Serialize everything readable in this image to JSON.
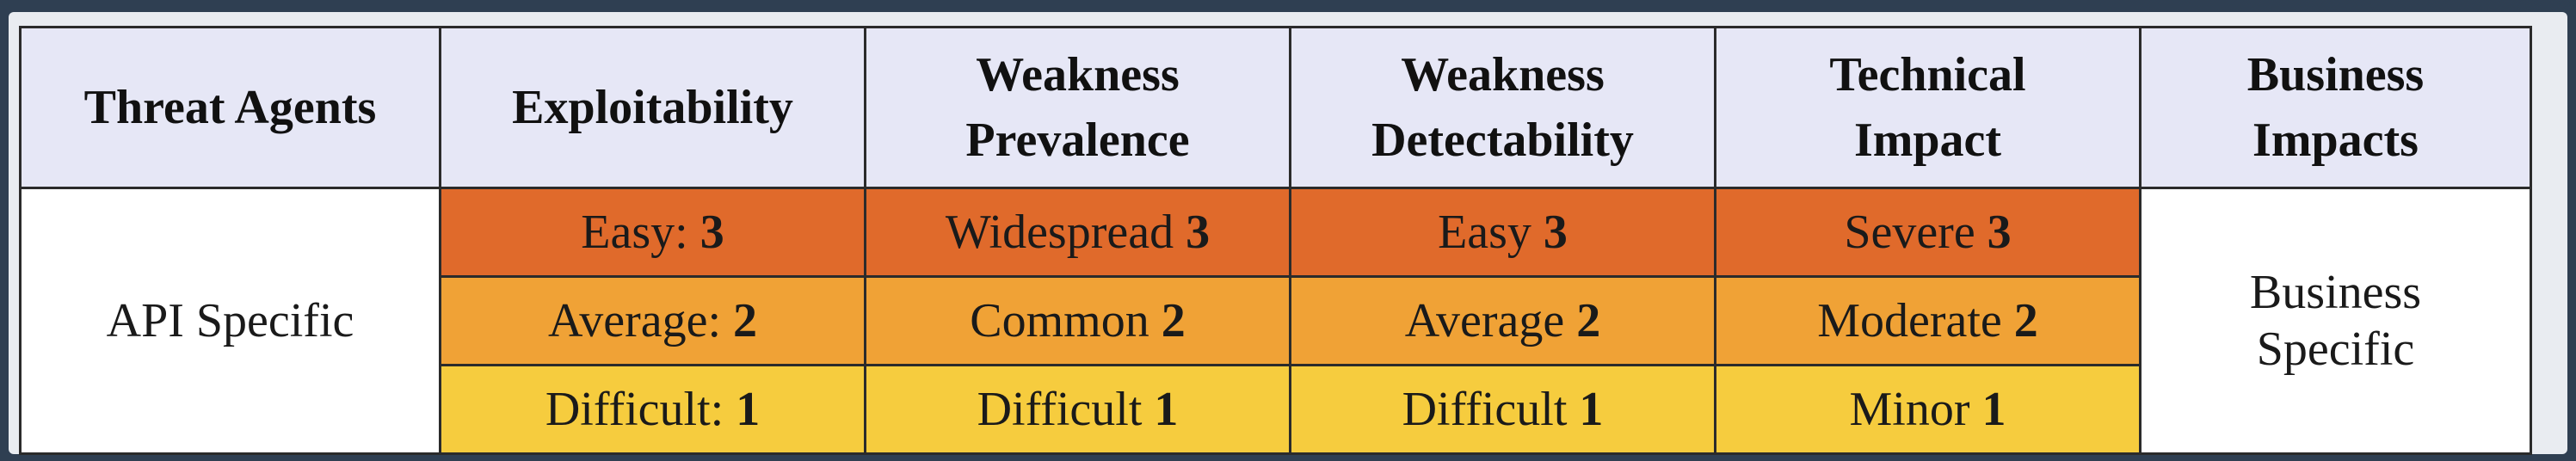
{
  "headers": [
    "Threat Agents",
    "Exploitability",
    "Weakness\nPrevalence",
    "Weakness\nDetectability",
    "Technical\nImpact",
    "Business\nImpacts"
  ],
  "threat_agents": "API Specific",
  "business_impacts": "Business\nSpecific",
  "rows": [
    {
      "level": 3,
      "cells": [
        {
          "text": "Easy: ",
          "score": "3"
        },
        {
          "text": "Widespread ",
          "score": "3"
        },
        {
          "text": "Easy ",
          "score": "3"
        },
        {
          "text": "Severe ",
          "score": "3"
        }
      ]
    },
    {
      "level": 2,
      "cells": [
        {
          "text": "Average: ",
          "score": "2"
        },
        {
          "text": "Common ",
          "score": "2"
        },
        {
          "text": "Average ",
          "score": "2"
        },
        {
          "text": "Moderate ",
          "score": "2"
        }
      ]
    },
    {
      "level": 1,
      "cells": [
        {
          "text": "Difficult: ",
          "score": "1"
        },
        {
          "text": "Difficult ",
          "score": "1"
        },
        {
          "text": "Difficult ",
          "score": "1"
        },
        {
          "text": "Minor ",
          "score": "1"
        }
      ]
    }
  ],
  "colors": {
    "level_3": "#e06a2b",
    "level_2": "#f0a236",
    "level_1": "#f6cc3e",
    "header_bg": "#e6e7f6"
  }
}
